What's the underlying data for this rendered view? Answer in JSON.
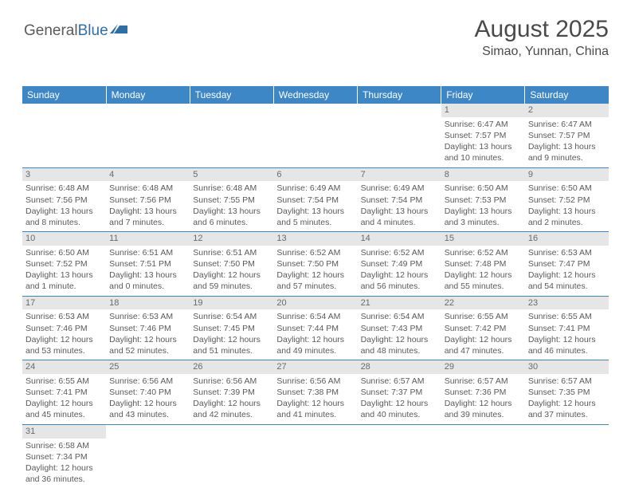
{
  "logo": {
    "text1": "General",
    "text2": "Blue"
  },
  "title": "August 2025",
  "location": "Simao, Yunnan, China",
  "colors": {
    "header_bg": "#3d87c7",
    "header_text": "#ffffff",
    "daynum_bg": "#e6e6e6",
    "row_border": "#3d87c7",
    "text": "#5a5a5a"
  },
  "weekdays": [
    "Sunday",
    "Monday",
    "Tuesday",
    "Wednesday",
    "Thursday",
    "Friday",
    "Saturday"
  ],
  "weeks": [
    [
      null,
      null,
      null,
      null,
      null,
      {
        "n": "1",
        "sr": "Sunrise: 6:47 AM",
        "ss": "Sunset: 7:57 PM",
        "dl": "Daylight: 13 hours and 10 minutes."
      },
      {
        "n": "2",
        "sr": "Sunrise: 6:47 AM",
        "ss": "Sunset: 7:57 PM",
        "dl": "Daylight: 13 hours and 9 minutes."
      }
    ],
    [
      {
        "n": "3",
        "sr": "Sunrise: 6:48 AM",
        "ss": "Sunset: 7:56 PM",
        "dl": "Daylight: 13 hours and 8 minutes."
      },
      {
        "n": "4",
        "sr": "Sunrise: 6:48 AM",
        "ss": "Sunset: 7:56 PM",
        "dl": "Daylight: 13 hours and 7 minutes."
      },
      {
        "n": "5",
        "sr": "Sunrise: 6:48 AM",
        "ss": "Sunset: 7:55 PM",
        "dl": "Daylight: 13 hours and 6 minutes."
      },
      {
        "n": "6",
        "sr": "Sunrise: 6:49 AM",
        "ss": "Sunset: 7:54 PM",
        "dl": "Daylight: 13 hours and 5 minutes."
      },
      {
        "n": "7",
        "sr": "Sunrise: 6:49 AM",
        "ss": "Sunset: 7:54 PM",
        "dl": "Daylight: 13 hours and 4 minutes."
      },
      {
        "n": "8",
        "sr": "Sunrise: 6:50 AM",
        "ss": "Sunset: 7:53 PM",
        "dl": "Daylight: 13 hours and 3 minutes."
      },
      {
        "n": "9",
        "sr": "Sunrise: 6:50 AM",
        "ss": "Sunset: 7:52 PM",
        "dl": "Daylight: 13 hours and 2 minutes."
      }
    ],
    [
      {
        "n": "10",
        "sr": "Sunrise: 6:50 AM",
        "ss": "Sunset: 7:52 PM",
        "dl": "Daylight: 13 hours and 1 minute."
      },
      {
        "n": "11",
        "sr": "Sunrise: 6:51 AM",
        "ss": "Sunset: 7:51 PM",
        "dl": "Daylight: 13 hours and 0 minutes."
      },
      {
        "n": "12",
        "sr": "Sunrise: 6:51 AM",
        "ss": "Sunset: 7:50 PM",
        "dl": "Daylight: 12 hours and 59 minutes."
      },
      {
        "n": "13",
        "sr": "Sunrise: 6:52 AM",
        "ss": "Sunset: 7:50 PM",
        "dl": "Daylight: 12 hours and 57 minutes."
      },
      {
        "n": "14",
        "sr": "Sunrise: 6:52 AM",
        "ss": "Sunset: 7:49 PM",
        "dl": "Daylight: 12 hours and 56 minutes."
      },
      {
        "n": "15",
        "sr": "Sunrise: 6:52 AM",
        "ss": "Sunset: 7:48 PM",
        "dl": "Daylight: 12 hours and 55 minutes."
      },
      {
        "n": "16",
        "sr": "Sunrise: 6:53 AM",
        "ss": "Sunset: 7:47 PM",
        "dl": "Daylight: 12 hours and 54 minutes."
      }
    ],
    [
      {
        "n": "17",
        "sr": "Sunrise: 6:53 AM",
        "ss": "Sunset: 7:46 PM",
        "dl": "Daylight: 12 hours and 53 minutes."
      },
      {
        "n": "18",
        "sr": "Sunrise: 6:53 AM",
        "ss": "Sunset: 7:46 PM",
        "dl": "Daylight: 12 hours and 52 minutes."
      },
      {
        "n": "19",
        "sr": "Sunrise: 6:54 AM",
        "ss": "Sunset: 7:45 PM",
        "dl": "Daylight: 12 hours and 51 minutes."
      },
      {
        "n": "20",
        "sr": "Sunrise: 6:54 AM",
        "ss": "Sunset: 7:44 PM",
        "dl": "Daylight: 12 hours and 49 minutes."
      },
      {
        "n": "21",
        "sr": "Sunrise: 6:54 AM",
        "ss": "Sunset: 7:43 PM",
        "dl": "Daylight: 12 hours and 48 minutes."
      },
      {
        "n": "22",
        "sr": "Sunrise: 6:55 AM",
        "ss": "Sunset: 7:42 PM",
        "dl": "Daylight: 12 hours and 47 minutes."
      },
      {
        "n": "23",
        "sr": "Sunrise: 6:55 AM",
        "ss": "Sunset: 7:41 PM",
        "dl": "Daylight: 12 hours and 46 minutes."
      }
    ],
    [
      {
        "n": "24",
        "sr": "Sunrise: 6:55 AM",
        "ss": "Sunset: 7:41 PM",
        "dl": "Daylight: 12 hours and 45 minutes."
      },
      {
        "n": "25",
        "sr": "Sunrise: 6:56 AM",
        "ss": "Sunset: 7:40 PM",
        "dl": "Daylight: 12 hours and 43 minutes."
      },
      {
        "n": "26",
        "sr": "Sunrise: 6:56 AM",
        "ss": "Sunset: 7:39 PM",
        "dl": "Daylight: 12 hours and 42 minutes."
      },
      {
        "n": "27",
        "sr": "Sunrise: 6:56 AM",
        "ss": "Sunset: 7:38 PM",
        "dl": "Daylight: 12 hours and 41 minutes."
      },
      {
        "n": "28",
        "sr": "Sunrise: 6:57 AM",
        "ss": "Sunset: 7:37 PM",
        "dl": "Daylight: 12 hours and 40 minutes."
      },
      {
        "n": "29",
        "sr": "Sunrise: 6:57 AM",
        "ss": "Sunset: 7:36 PM",
        "dl": "Daylight: 12 hours and 39 minutes."
      },
      {
        "n": "30",
        "sr": "Sunrise: 6:57 AM",
        "ss": "Sunset: 7:35 PM",
        "dl": "Daylight: 12 hours and 37 minutes."
      }
    ],
    [
      {
        "n": "31",
        "sr": "Sunrise: 6:58 AM",
        "ss": "Sunset: 7:34 PM",
        "dl": "Daylight: 12 hours and 36 minutes."
      },
      null,
      null,
      null,
      null,
      null,
      null
    ]
  ]
}
